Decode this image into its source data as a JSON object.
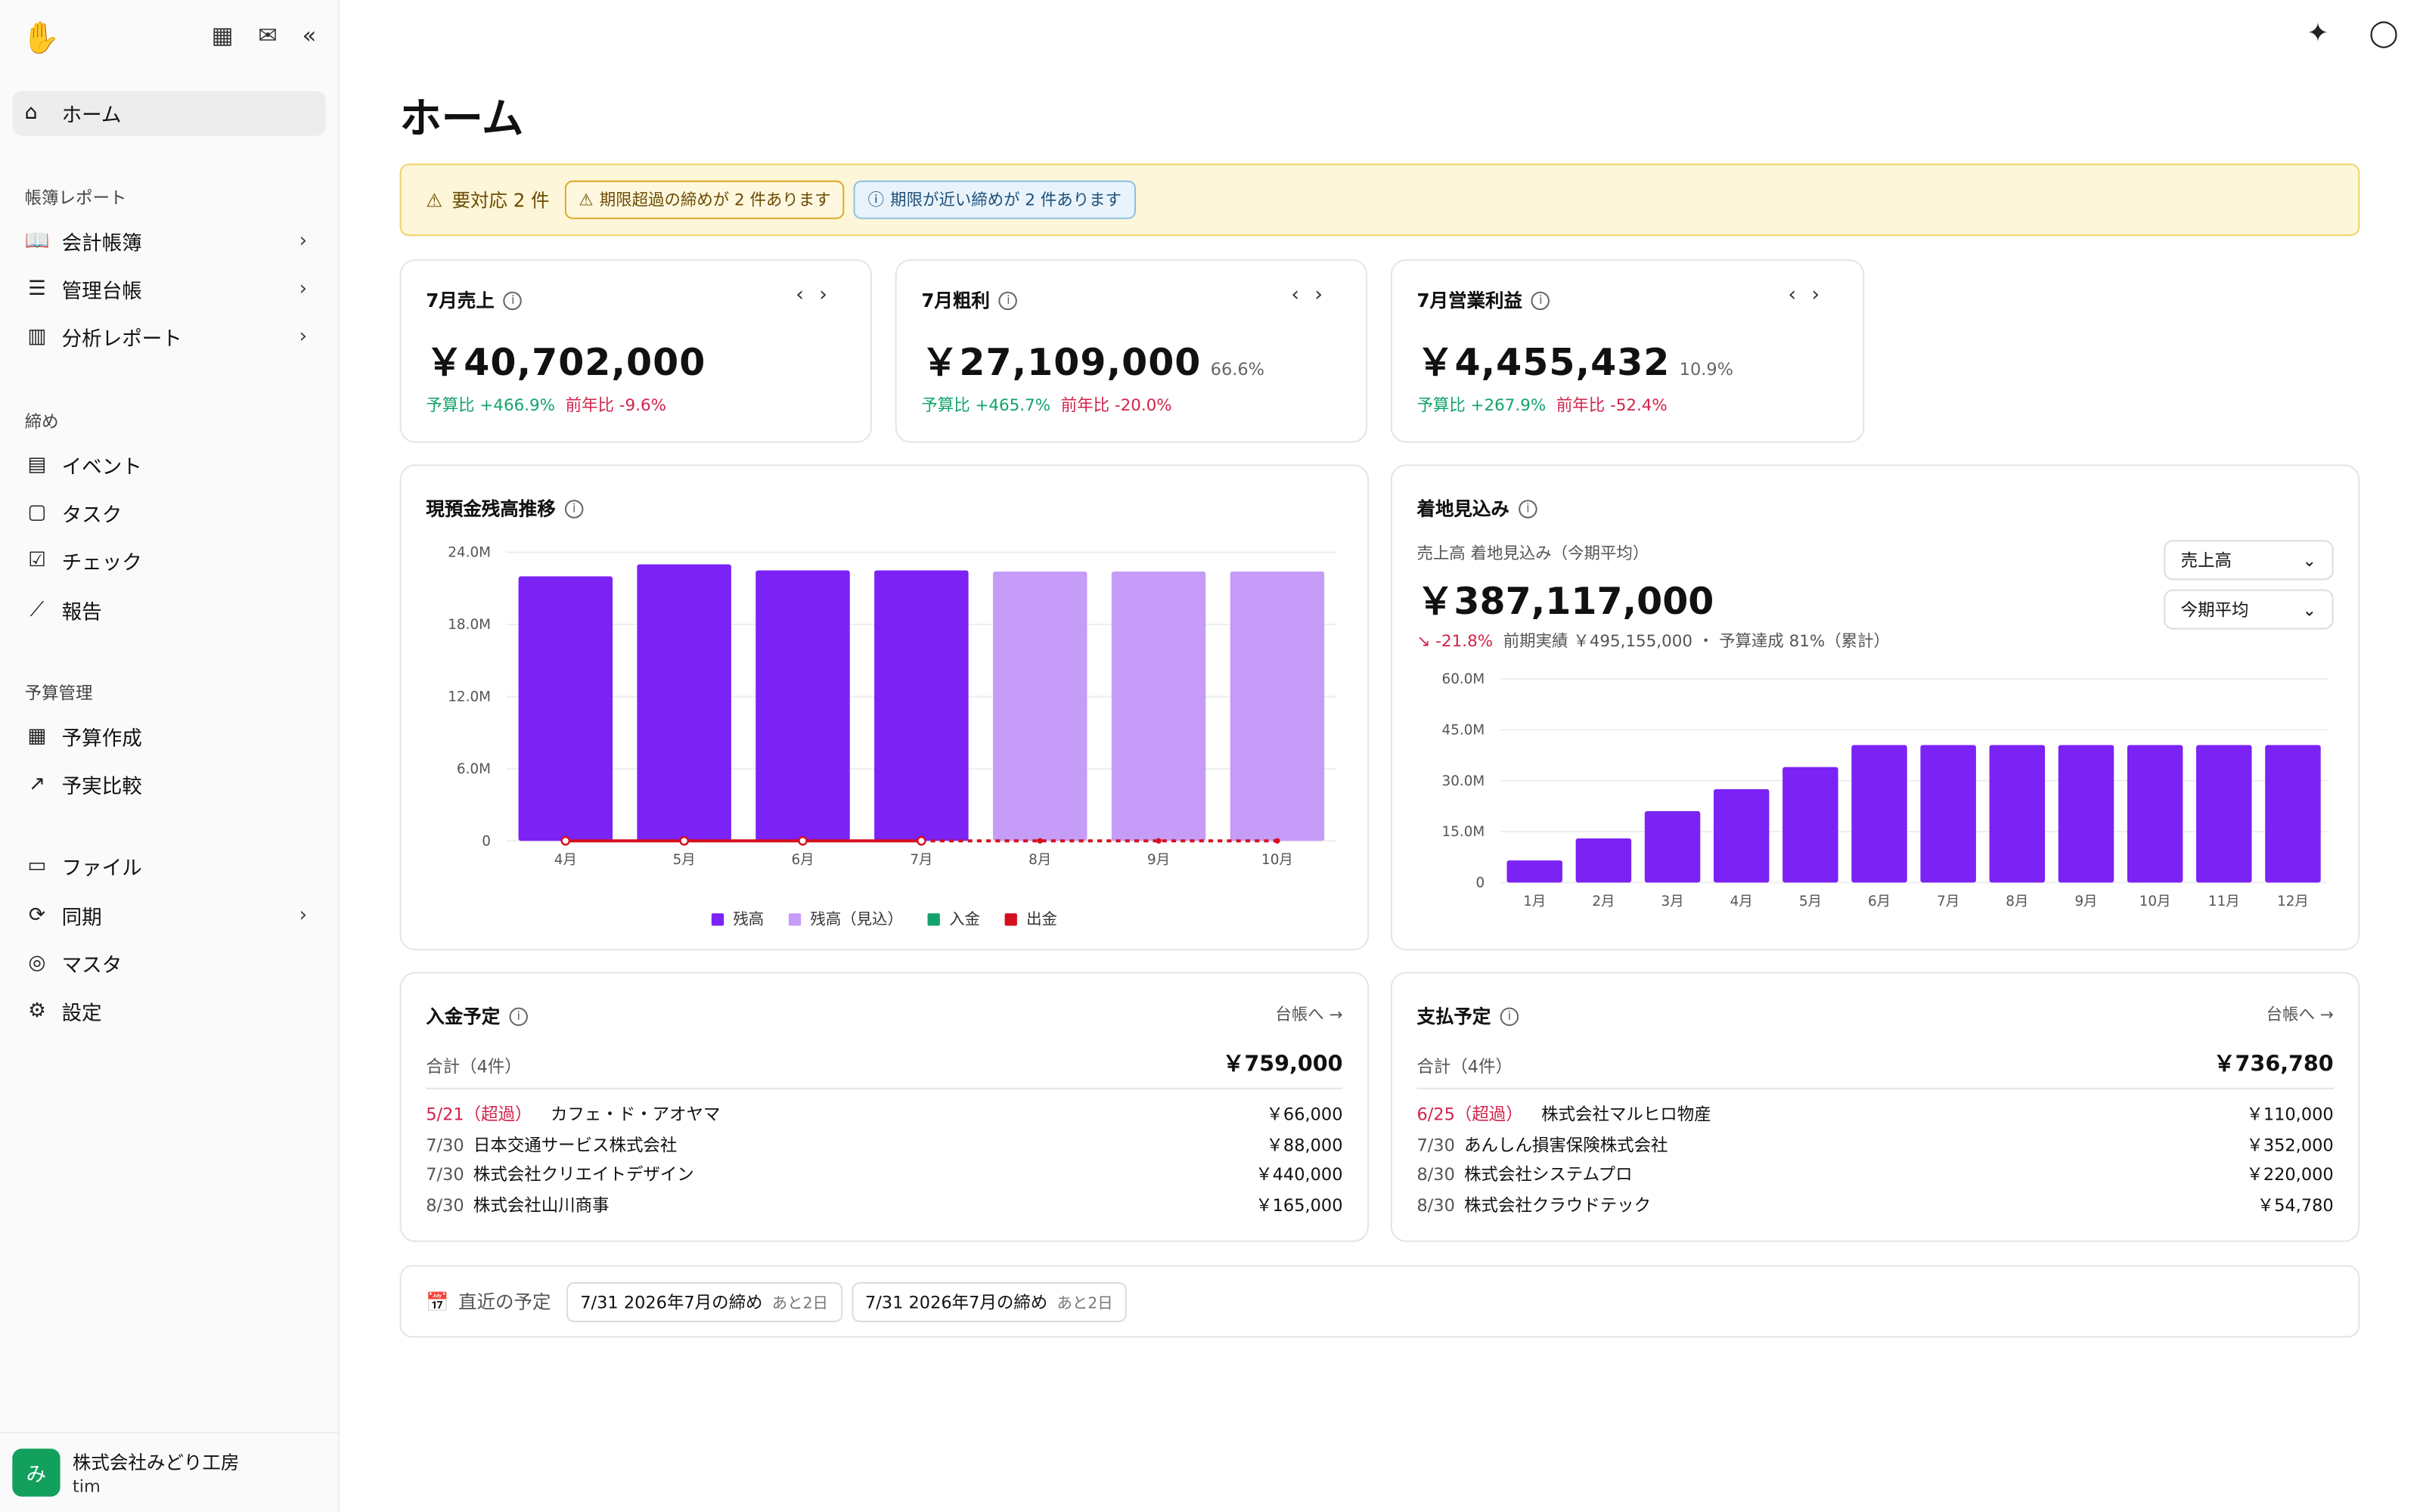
{
  "sidebar": {
    "home": "ホーム",
    "sections": [
      {
        "title": "帳簿レポート",
        "items": [
          {
            "label": "会計帳簿",
            "icon": "book-icon",
            "chev": true
          },
          {
            "label": "管理台帳",
            "icon": "list-icon",
            "chev": true
          },
          {
            "label": "分析レポート",
            "icon": "bar-chart-icon",
            "chev": true
          }
        ]
      },
      {
        "title": "締め",
        "items": [
          {
            "label": "イベント",
            "icon": "calendar-icon"
          },
          {
            "label": "タスク",
            "icon": "clipboard-icon"
          },
          {
            "label": "チェック",
            "icon": "checklist-icon"
          },
          {
            "label": "報告",
            "icon": "line-chart-icon"
          }
        ]
      },
      {
        "title": "予算管理",
        "items": [
          {
            "label": "予算作成",
            "icon": "calculator-icon"
          },
          {
            "label": "予実比較",
            "icon": "trend-icon"
          }
        ]
      },
      {
        "title": "",
        "items": [
          {
            "label": "ファイル",
            "icon": "folder-icon"
          },
          {
            "label": "同期",
            "icon": "sync-icon",
            "chev": true
          },
          {
            "label": "マスタ",
            "icon": "database-icon"
          },
          {
            "label": "設定",
            "icon": "gear-icon"
          }
        ]
      }
    ],
    "org_name": "株式会社みどり工房",
    "user_name": "tim",
    "avatar": "み"
  },
  "page": {
    "title": "ホーム"
  },
  "alert": {
    "title": "要対応 2 件",
    "chip_overdue": "期限超過の締めが 2 件あります",
    "chip_near": "期限が近い締めが 2 件あります"
  },
  "kpis": [
    {
      "label": "7月売上",
      "value": "￥40,702,000",
      "ratio": "",
      "budget": "予算比 +466.9%",
      "yoy": "前年比 -9.6%"
    },
    {
      "label": "7月粗利",
      "value": "￥27,109,000",
      "ratio": "66.6%",
      "budget": "予算比 +465.7%",
      "yoy": "前年比 -20.0%"
    },
    {
      "label": "7月営業利益",
      "value": "￥4,455,432",
      "ratio": "10.9%",
      "budget": "予算比 +267.9%",
      "yoy": "前年比 -52.4%"
    }
  ],
  "cash_chart": {
    "title": "現預金残高推移",
    "legend": [
      "残高",
      "残高（見込）",
      "入金",
      "出金"
    ]
  },
  "landing": {
    "title": "着地見込み",
    "sub": "売上高 着地見込み（今期平均）",
    "value": "￥387,117,000",
    "delta": "-21.8%",
    "delta_rest": "前期実績 ￥495,155,000 ・ 予算達成 81%（累計）",
    "select1": "売上高",
    "select2": "今期平均"
  },
  "chart_data": [
    {
      "type": "bar",
      "title": "現預金残高推移",
      "categories": [
        "4月",
        "5月",
        "6月",
        "7月",
        "8月",
        "9月",
        "10月"
      ],
      "ylim": [
        0,
        24000000
      ],
      "yticks": [
        "0",
        "6.0M",
        "12.0M",
        "18.0M",
        "24.0M"
      ],
      "series": [
        {
          "name": "残高",
          "values": [
            22000000,
            23000000,
            22500000,
            22500000,
            null,
            null,
            null
          ],
          "color": "#7b22f5"
        },
        {
          "name": "残高（見込）",
          "values": [
            null,
            null,
            null,
            null,
            22400000,
            22400000,
            22400000
          ],
          "color": "#c59cf7"
        },
        {
          "name": "入金",
          "values": [
            0,
            0,
            0,
            0,
            0,
            0,
            0
          ],
          "color": "#11a36b"
        },
        {
          "name": "出金",
          "values": [
            0,
            0,
            0,
            0,
            0,
            0,
            0
          ],
          "color": "#d40f1f"
        }
      ]
    },
    {
      "type": "bar",
      "title": "着地見込み",
      "categories": [
        "1月",
        "2月",
        "3月",
        "4月",
        "5月",
        "6月",
        "7月",
        "8月",
        "9月",
        "10月",
        "11月",
        "12月"
      ],
      "ylim": [
        0,
        60000000
      ],
      "yticks": [
        "0",
        "15.0M",
        "30.0M",
        "45.0M",
        "60.0M"
      ],
      "series": [
        {
          "name": "売上高",
          "values": [
            6500000,
            13000000,
            21000000,
            27500000,
            34000000,
            40500000,
            40500000,
            40500000,
            40500000,
            40500000,
            40500000,
            40500000
          ],
          "color": "#7b22f5"
        }
      ]
    }
  ],
  "receipts": {
    "title": "入金予定",
    "link": "台帳へ →",
    "total_label": "合計（4件）",
    "total_value": "￥759,000",
    "rows": [
      {
        "date": "5/21（超過）",
        "overdue": true,
        "name": "カフェ・ド・アオヤマ",
        "amount": "￥66,000"
      },
      {
        "date": "7/30",
        "name": "日本交通サービス株式会社",
        "amount": "￥88,000"
      },
      {
        "date": "7/30",
        "name": "株式会社クリエイトデザイン",
        "amount": "￥440,000"
      },
      {
        "date": "8/30",
        "name": "株式会社山川商事",
        "amount": "￥165,000"
      }
    ]
  },
  "payments": {
    "title": "支払予定",
    "link": "台帳へ →",
    "total_label": "合計（4件）",
    "total_value": "￥736,780",
    "rows": [
      {
        "date": "6/25（超過）",
        "overdue": true,
        "name": "株式会社マルヒロ物産",
        "amount": "￥110,000"
      },
      {
        "date": "7/30",
        "name": "あんしん損害保険株式会社",
        "amount": "￥352,000"
      },
      {
        "date": "8/30",
        "name": "株式会社システムプロ",
        "amount": "￥220,000"
      },
      {
        "date": "8/30",
        "name": "株式会社クラウドテック",
        "amount": "￥54,780"
      }
    ]
  },
  "upcoming": {
    "label": "直近の予定",
    "items": [
      {
        "text": "7/31 2026年7月の締め",
        "sub": "あと2日"
      },
      {
        "text": "7/31 2026年7月の締め",
        "sub": "あと2日"
      }
    ]
  }
}
